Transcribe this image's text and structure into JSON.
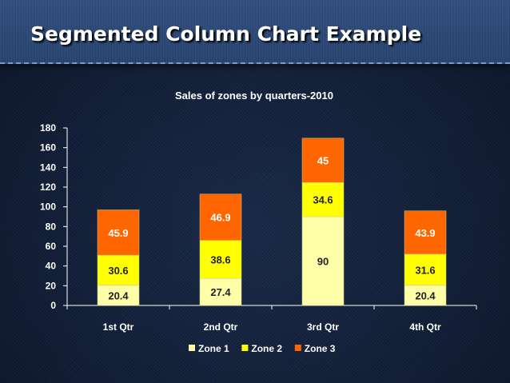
{
  "slide": {
    "title": "Segmented Column Chart Example"
  },
  "chart_data": {
    "type": "bar",
    "stacked": true,
    "title": "Sales of zones by quarters-2010",
    "xlabel": "",
    "ylabel": "",
    "categories": [
      "1st Qtr",
      "2nd Qtr",
      "3rd Qtr",
      "4th Qtr"
    ],
    "ylim": [
      0,
      180
    ],
    "yticks": [
      0,
      20,
      40,
      60,
      80,
      100,
      120,
      140,
      160,
      180
    ],
    "grid": false,
    "legend": "bottom",
    "series": [
      {
        "name": "Zone 1",
        "values": [
          20.4,
          27.4,
          90,
          20.4
        ],
        "color": "#ffffaa"
      },
      {
        "name": "Zone 2",
        "values": [
          30.6,
          38.6,
          34.6,
          31.6
        ],
        "color": "#ffff00"
      },
      {
        "name": "Zone 3",
        "values": [
          45.9,
          46.9,
          45,
          43.9
        ],
        "color": "#ff6600"
      }
    ]
  }
}
